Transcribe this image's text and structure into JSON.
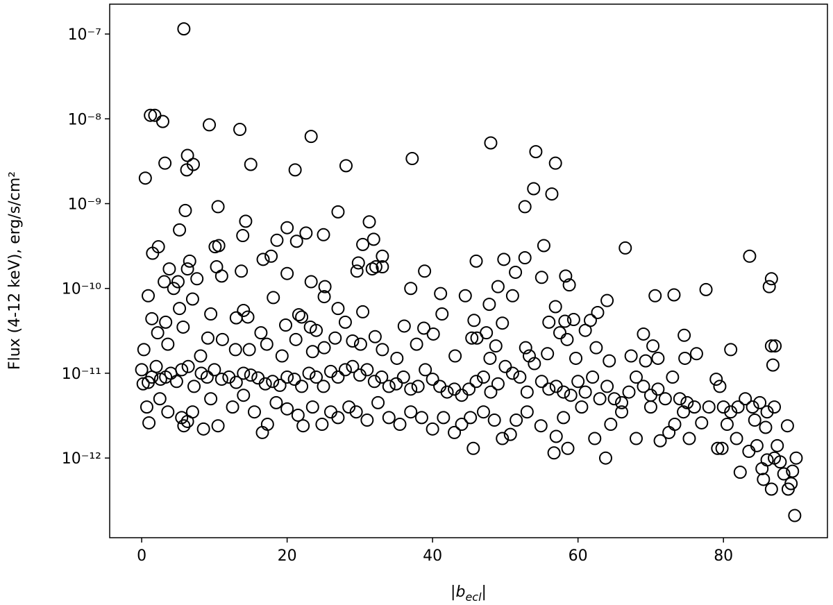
{
  "chart_data": {
    "type": "scatter",
    "log_y": true,
    "color": "#000000",
    "ylabel": "Flux (4-12 keV), erg/s/cm²",
    "xlabel": [
      "|",
      "b",
      "ecl",
      "|"
    ],
    "xlim": [
      -4.4,
      94.3
    ],
    "ylim": [
      2.25e-07,
      1.15e-13
    ],
    "xticks": [
      0,
      20,
      40,
      60,
      80
    ],
    "yticks": [
      {
        "value": 1e-07,
        "label": "10⁻⁷"
      },
      {
        "value": 1e-08,
        "label": "10⁻⁸"
      },
      {
        "value": 1e-09,
        "label": "10⁻⁹"
      },
      {
        "value": 1e-10,
        "label": "10⁻¹⁰"
      },
      {
        "value": 1e-11,
        "label": "10⁻¹¹"
      },
      {
        "value": 1e-12,
        "label": "10⁻¹²"
      }
    ],
    "x": [
      5.8,
      1.2,
      1.8,
      2.9,
      9.3,
      13.5,
      23.3,
      48,
      54.2,
      6.3,
      37.2,
      0.5,
      3.2,
      6.2,
      7.1,
      15.0,
      21.1,
      28.1,
      56.9,
      53.9,
      56.4,
      52.7,
      10.5,
      27.0,
      6.0,
      5.2,
      14.3,
      20.0,
      31.3,
      13.9,
      22.6,
      25.0,
      18.6,
      21.3,
      30.4,
      31.9,
      10.1,
      10.6,
      2.3,
      1.5,
      55.3,
      66.5,
      83.6,
      6.6,
      16.7,
      17.8,
      33.1,
      29.8,
      46.0,
      49.8,
      52.7,
      3.8,
      6.3,
      10.3,
      13.7,
      20.0,
      29.6,
      31.7,
      32.2,
      33.1,
      38.9,
      51.4,
      55.0,
      58.3,
      86.6,
      5.0,
      3.1,
      7.6,
      11.0,
      23.3,
      25.2,
      37.0,
      49.0,
      58.8,
      77.6,
      86.3,
      4.4,
      7.0,
      18.1,
      25.1,
      41.1,
      44.5,
      51.0,
      70.6,
      73.2,
      0.9,
      64.0,
      47.8,
      56.9,
      27.0,
      30.4,
      14.0,
      5.2,
      9.5,
      21.6,
      41.3,
      62.7,
      1.4,
      14.6,
      22.0,
      28.0,
      45.7,
      49.6,
      56.0,
      58.2,
      59.4,
      61.7,
      13.0,
      3.3,
      23.2,
      36.1,
      40.1,
      38.8,
      47.4,
      5.7,
      16.4,
      19.8,
      24.0,
      61.0,
      69.0,
      74.6,
      57.5,
      2.2,
      11.1,
      0.3,
      3.6,
      17.2,
      21.2,
      26.6,
      29.0,
      32.1,
      37.8,
      45.4,
      46.1,
      48.7,
      52.8,
      58.5,
      62.5,
      70.3,
      76.3,
      81.0,
      86.6,
      87.1,
      8.1,
      9.1,
      12.9,
      14.8,
      19.3,
      23.5,
      25.1,
      30.1,
      33.1,
      35.1,
      43.1,
      47.9,
      53.3,
      55.8,
      59.7,
      64.3,
      67.3,
      69.3,
      71.0,
      74.7,
      86.8,
      0.0,
      0.2,
      0.9,
      1.4,
      2.0,
      2.6,
      3.3,
      4.0,
      4.8,
      5.5,
      6.4,
      7.2,
      8.2,
      9.0,
      10.0,
      11.0,
      12.0,
      13.0,
      14.0,
      15.0,
      16.0,
      17.0,
      18.0,
      19.0,
      20.0,
      21.0,
      22.0,
      23.0,
      24.0,
      25.0,
      26.0,
      27.0,
      28.0,
      29.0,
      30.0,
      31.0,
      32.0,
      33.0,
      34.0,
      35.0,
      36.0,
      37.0,
      38.0,
      39.0,
      40.0,
      41.0,
      42.0,
      43.0,
      44.0,
      45.0,
      46.0,
      47.0,
      48.0,
      49.0,
      50.0,
      51.0,
      52.0,
      53.0,
      54.0,
      55.0,
      56.0,
      57.0,
      58.0,
      59.0,
      60.0,
      61.0,
      62.0,
      63.0,
      64.0,
      65.0,
      66.0,
      67.0,
      68.0,
      69.0,
      70.0,
      71.0,
      72.0,
      73.0,
      74.0,
      75.0,
      76.0,
      78.0,
      79.0,
      79.5,
      80.0,
      81.0,
      82.0,
      83.0,
      84.0,
      85.0,
      86.0,
      87.0,
      0.7,
      1.0,
      2.5,
      3.6,
      5.5,
      5.8,
      6.3,
      7.0,
      8.5,
      9.5,
      10.5,
      12.5,
      14.0,
      15.5,
      16.6,
      17.3,
      18.5,
      20.0,
      21.5,
      22.2,
      23.5,
      24.8,
      26.0,
      27.0,
      28.5,
      29.5,
      31.0,
      32.5,
      34.0,
      35.5,
      37.0,
      38.5,
      40.0,
      41.5,
      43.0,
      44.0,
      45.2,
      45.6,
      47.0,
      48.5,
      49.6,
      50.7,
      51.5,
      53.0,
      54.9,
      56.7,
      57.0,
      58.0,
      58.6,
      60.5,
      62.3,
      63.8,
      64.5,
      66.0,
      68.0,
      70.0,
      71.3,
      72.5,
      73.3,
      74.5,
      75.3,
      77.0,
      79.2,
      79.8,
      80.5,
      81.8,
      82.3,
      83.5,
      84.6,
      85.3,
      85.5,
      86.0,
      86.6,
      87.0,
      87.4,
      87.8,
      88.3,
      88.8,
      88.9,
      89.3,
      89.5,
      90.0,
      89.8,
      84.3,
      85.8
    ],
    "values": [
      1.15e-07,
      1.1e-08,
      1.1e-08,
      9.3e-09,
      8.5e-09,
      7.5e-09,
      6.2e-09,
      5.2e-09,
      4.1e-09,
      3.7e-09,
      3.4e-09,
      2e-09,
      3e-09,
      2.5e-09,
      2.9e-09,
      2.9e-09,
      2.5e-09,
      2.8e-09,
      3e-09,
      1.5e-09,
      1.3e-09,
      9.2e-10,
      9.2e-10,
      8e-10,
      8.3e-10,
      4.9e-10,
      6.2e-10,
      5.2e-10,
      6.1e-10,
      4.2e-10,
      4.5e-10,
      4.3e-10,
      3.7e-10,
      3.6e-10,
      3.3e-10,
      3.8e-10,
      3.1e-10,
      3.2e-10,
      3.1e-10,
      2.6e-10,
      3.2e-10,
      3e-10,
      2.4e-10,
      2.1e-10,
      2.2e-10,
      2.4e-10,
      2.4e-10,
      2e-10,
      2.1e-10,
      2.2e-10,
      2.3e-10,
      1.7e-10,
      1.7e-10,
      1.8e-10,
      1.6e-10,
      1.5e-10,
      1.6e-10,
      1.7e-10,
      1.8e-10,
      1.8e-10,
      1.6e-10,
      1.55e-10,
      1.35e-10,
      1.4e-10,
      1.3e-10,
      1.2e-10,
      1.2e-10,
      1.3e-10,
      1.4e-10,
      1.2e-10,
      1.05e-10,
      1e-10,
      1.05e-10,
      1.1e-10,
      9.7e-11,
      1.05e-10,
      1e-10,
      7.5e-11,
      7.8e-11,
      8e-11,
      8.7e-11,
      8.2e-11,
      8.2e-11,
      8.2e-11,
      8.4e-11,
      8.2e-11,
      7.2e-11,
      6.5e-11,
      6.1e-11,
      5.8e-11,
      5.3e-11,
      5.5e-11,
      5.8e-11,
      5e-11,
      4.9e-11,
      5e-11,
      5.2e-11,
      4.4e-11,
      4.6e-11,
      4.6e-11,
      4e-11,
      4.2e-11,
      3.9e-11,
      4e-11,
      4.1e-11,
      4.3e-11,
      4.2e-11,
      4.5e-11,
      4e-11,
      3.5e-11,
      3.6e-11,
      2.9e-11,
      3.4e-11,
      3e-11,
      3.5e-11,
      3e-11,
      3.7e-11,
      3.2e-11,
      3.2e-11,
      2.9e-11,
      2.8e-11,
      3e-11,
      3e-11,
      2.5e-11,
      1.9e-11,
      2.2e-11,
      2.2e-11,
      2.5e-11,
      2.6e-11,
      2.4e-11,
      2.7e-11,
      2.2e-11,
      2.6e-11,
      2.6e-11,
      2.1e-11,
      2e-11,
      2.5e-11,
      2e-11,
      2.1e-11,
      1.7e-11,
      1.9e-11,
      2.1e-11,
      2.1e-11,
      1.6e-11,
      2.6e-11,
      1.9e-11,
      1.9e-11,
      1.6e-11,
      1.8e-11,
      2e-11,
      2.2e-11,
      1.9e-11,
      1.5e-11,
      1.6e-11,
      1.5e-11,
      1.6e-11,
      1.7e-11,
      1.5e-11,
      1.4e-11,
      1.6e-11,
      1.4e-11,
      1.5e-11,
      1.5e-11,
      1.25e-11,
      1.1e-11,
      7.5e-12,
      7.8e-12,
      9e-12,
      1.2e-11,
      8.5e-12,
      9e-12,
      1e-11,
      8e-12,
      1.1e-11,
      1.2e-11,
      7e-12,
      1e-11,
      9e-12,
      1.1e-11,
      8.5e-12,
      9e-12,
      7.8e-12,
      1e-11,
      9.5e-12,
      8.8e-12,
      7.5e-12,
      8e-12,
      7.2e-12,
      9e-12,
      8.5e-12,
      7e-12,
      1e-11,
      9e-12,
      7e-12,
      1.05e-11,
      9e-12,
      1.1e-11,
      1.2e-11,
      9.5e-12,
      1.1e-11,
      8e-12,
      9e-12,
      7e-12,
      7.5e-12,
      9e-12,
      6.5e-12,
      7e-12,
      1.1e-11,
      8.5e-12,
      7e-12,
      6e-12,
      6.5e-12,
      5.5e-12,
      6.5e-12,
      8e-12,
      9e-12,
      6e-12,
      7.5e-12,
      1.2e-11,
      1e-11,
      9e-12,
      6e-12,
      1.3e-11,
      8e-12,
      6.5e-12,
      7e-12,
      6e-12,
      5.5e-12,
      8e-12,
      6e-12,
      9e-12,
      5e-12,
      7e-12,
      5e-12,
      4.5e-12,
      6e-12,
      9e-12,
      7e-12,
      5.5e-12,
      6.5e-12,
      5e-12,
      9e-12,
      5e-12,
      4.5e-12,
      4e-12,
      4e-12,
      8.5e-12,
      7e-12,
      4e-12,
      3.5e-12,
      4e-12,
      5e-12,
      4e-12,
      4.5e-12,
      3.5e-12,
      4e-12,
      4e-12,
      2.6e-12,
      5e-12,
      3.5e-12,
      3e-12,
      2.4e-12,
      2.7e-12,
      3.5e-12,
      2.2e-12,
      5e-12,
      2.4e-12,
      4e-12,
      5.5e-12,
      3.5e-12,
      2e-12,
      2.5e-12,
      4.5e-12,
      3.8e-12,
      3.2e-12,
      2.4e-12,
      4e-12,
      2.5e-12,
      3.5e-12,
      3e-12,
      4e-12,
      3.5e-12,
      2.8e-12,
      4.5e-12,
      3e-12,
      2.5e-12,
      3.5e-12,
      3e-12,
      2.2e-12,
      3e-12,
      2e-12,
      2.5e-12,
      3e-12,
      1.3e-12,
      3.5e-12,
      2.8e-12,
      1.7e-12,
      1.9e-12,
      2.8e-12,
      3.5e-12,
      2.4e-12,
      1.15e-12,
      1.8e-12,
      3e-12,
      1.3e-12,
      4e-12,
      1.7e-12,
      1e-12,
      2.5e-12,
      3.5e-12,
      1.7e-12,
      4e-12,
      1.6e-12,
      2e-12,
      2.5e-12,
      3.5e-12,
      1.7e-12,
      2.6e-12,
      1.3e-12,
      1.3e-12,
      2.5e-12,
      1.7e-12,
      6.8e-13,
      1.2e-12,
      1.4e-12,
      7.5e-13,
      5.6e-13,
      9.5e-13,
      4.3e-13,
      1e-12,
      1.4e-12,
      9e-13,
      6.5e-13,
      2.4e-12,
      4.3e-13,
      5e-13,
      7e-13,
      1e-12,
      2.1e-13,
      2.8e-12,
      2.3e-12
    ]
  }
}
